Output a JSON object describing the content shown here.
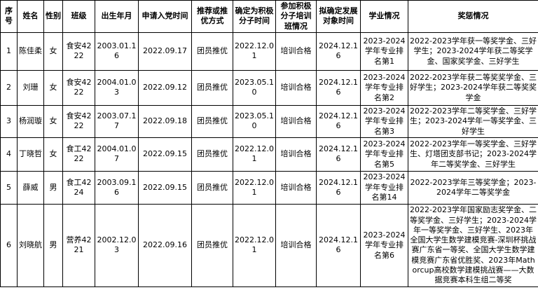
{
  "table": {
    "columns": [
      {
        "key": "index",
        "label": "序号"
      },
      {
        "key": "name",
        "label": "姓名"
      },
      {
        "key": "gender",
        "label": "性别"
      },
      {
        "key": "class",
        "label": "班级"
      },
      {
        "key": "birth",
        "label": "出生年月"
      },
      {
        "key": "apply-time",
        "label": "申请入党时间"
      },
      {
        "key": "recommend",
        "label": "推荐或推优方式"
      },
      {
        "key": "activist-time",
        "label": "确定为积极分子时间"
      },
      {
        "key": "training",
        "label": "参加积极分子培训班情况"
      },
      {
        "key": "target-time",
        "label": "拟确定发展对象时间"
      },
      {
        "key": "academic",
        "label": "学业情况"
      },
      {
        "key": "awards",
        "label": "奖惩情况"
      }
    ],
    "rows": [
      [
        "1",
        "陈佳柔",
        "女",
        "食安4222",
        "2003.01.16",
        "2022.09.17",
        "团员推优",
        "2022.12.01",
        "培训合格",
        "2024.12.16",
        "2023-2024学年专业排名第1",
        "2022-2023学年获一等奖学金、三好学生；2023-2024学年获二等奖学金、国家奖学金、三好学生"
      ],
      [
        "2",
        "刘珊",
        "女",
        "食安4222",
        "2004.01.03",
        "2022.09.12",
        "团员推优",
        "2023.05.10",
        "培训合格",
        "2024.12.16",
        "2023-2024学年专业排名第2",
        "2022-2023学年获二等奖奖学金、三好学生；2023-2024学年获二等奖奖学金"
      ],
      [
        "3",
        "杨润璇",
        "女",
        "食安4222",
        "2003.07.17",
        "2022.09.18",
        "团员推优",
        "2023.05.10",
        "培训合格",
        "2024.12.16",
        "2023-2024学年专业排名第3",
        "2022-2023学年二等奖学金、三好学生；2023-2024学年一等奖学金、三好学生"
      ],
      [
        "4",
        "丁晓哲",
        "女",
        "食工4222",
        "2004.01.07",
        "2022.09.15",
        "团员推优",
        "2022.12.01",
        "培训合格",
        "2024.12.16",
        "2023-2024学年专业排名第5",
        "2022-2023学年一等奖学金、三好学生、灯塔团支部书记；2023-2024学年二等奖学金、三好学生"
      ],
      [
        "5",
        "薛威",
        "男",
        "食工4224",
        "2003.09.16",
        "2022.09.15",
        "团员推优",
        "2022.12.01",
        "培训合格",
        "2024.12.16",
        "2023-2024学年专业排名第14",
        "2022-2023学年三等奖学金；2023-2024学年二等奖学金"
      ],
      [
        "6",
        "刘晓航",
        "男",
        "营养4221",
        "2002.12.03",
        "2022.09.16",
        "团员推优",
        "2022.12.01",
        "培训合格",
        "2024.12.16",
        "2023-2024学年专业排名第6",
        "2022-2023学年国家励志奖学金、二等奖学金、三好学生；2023-2024学年一等奖学金、三好学生、2023年全国大学生数学建模竞赛-深圳杯挑战赛广东省一等奖、全国大学生数学建模竞赛广东省优胜奖、2023年Mathorcup高校数学建模挑战赛——大数据竞赛本科生组二等奖"
      ]
    ],
    "colors": {
      "grid": "#000000",
      "text": "#000000",
      "background": "#ffffff"
    }
  }
}
